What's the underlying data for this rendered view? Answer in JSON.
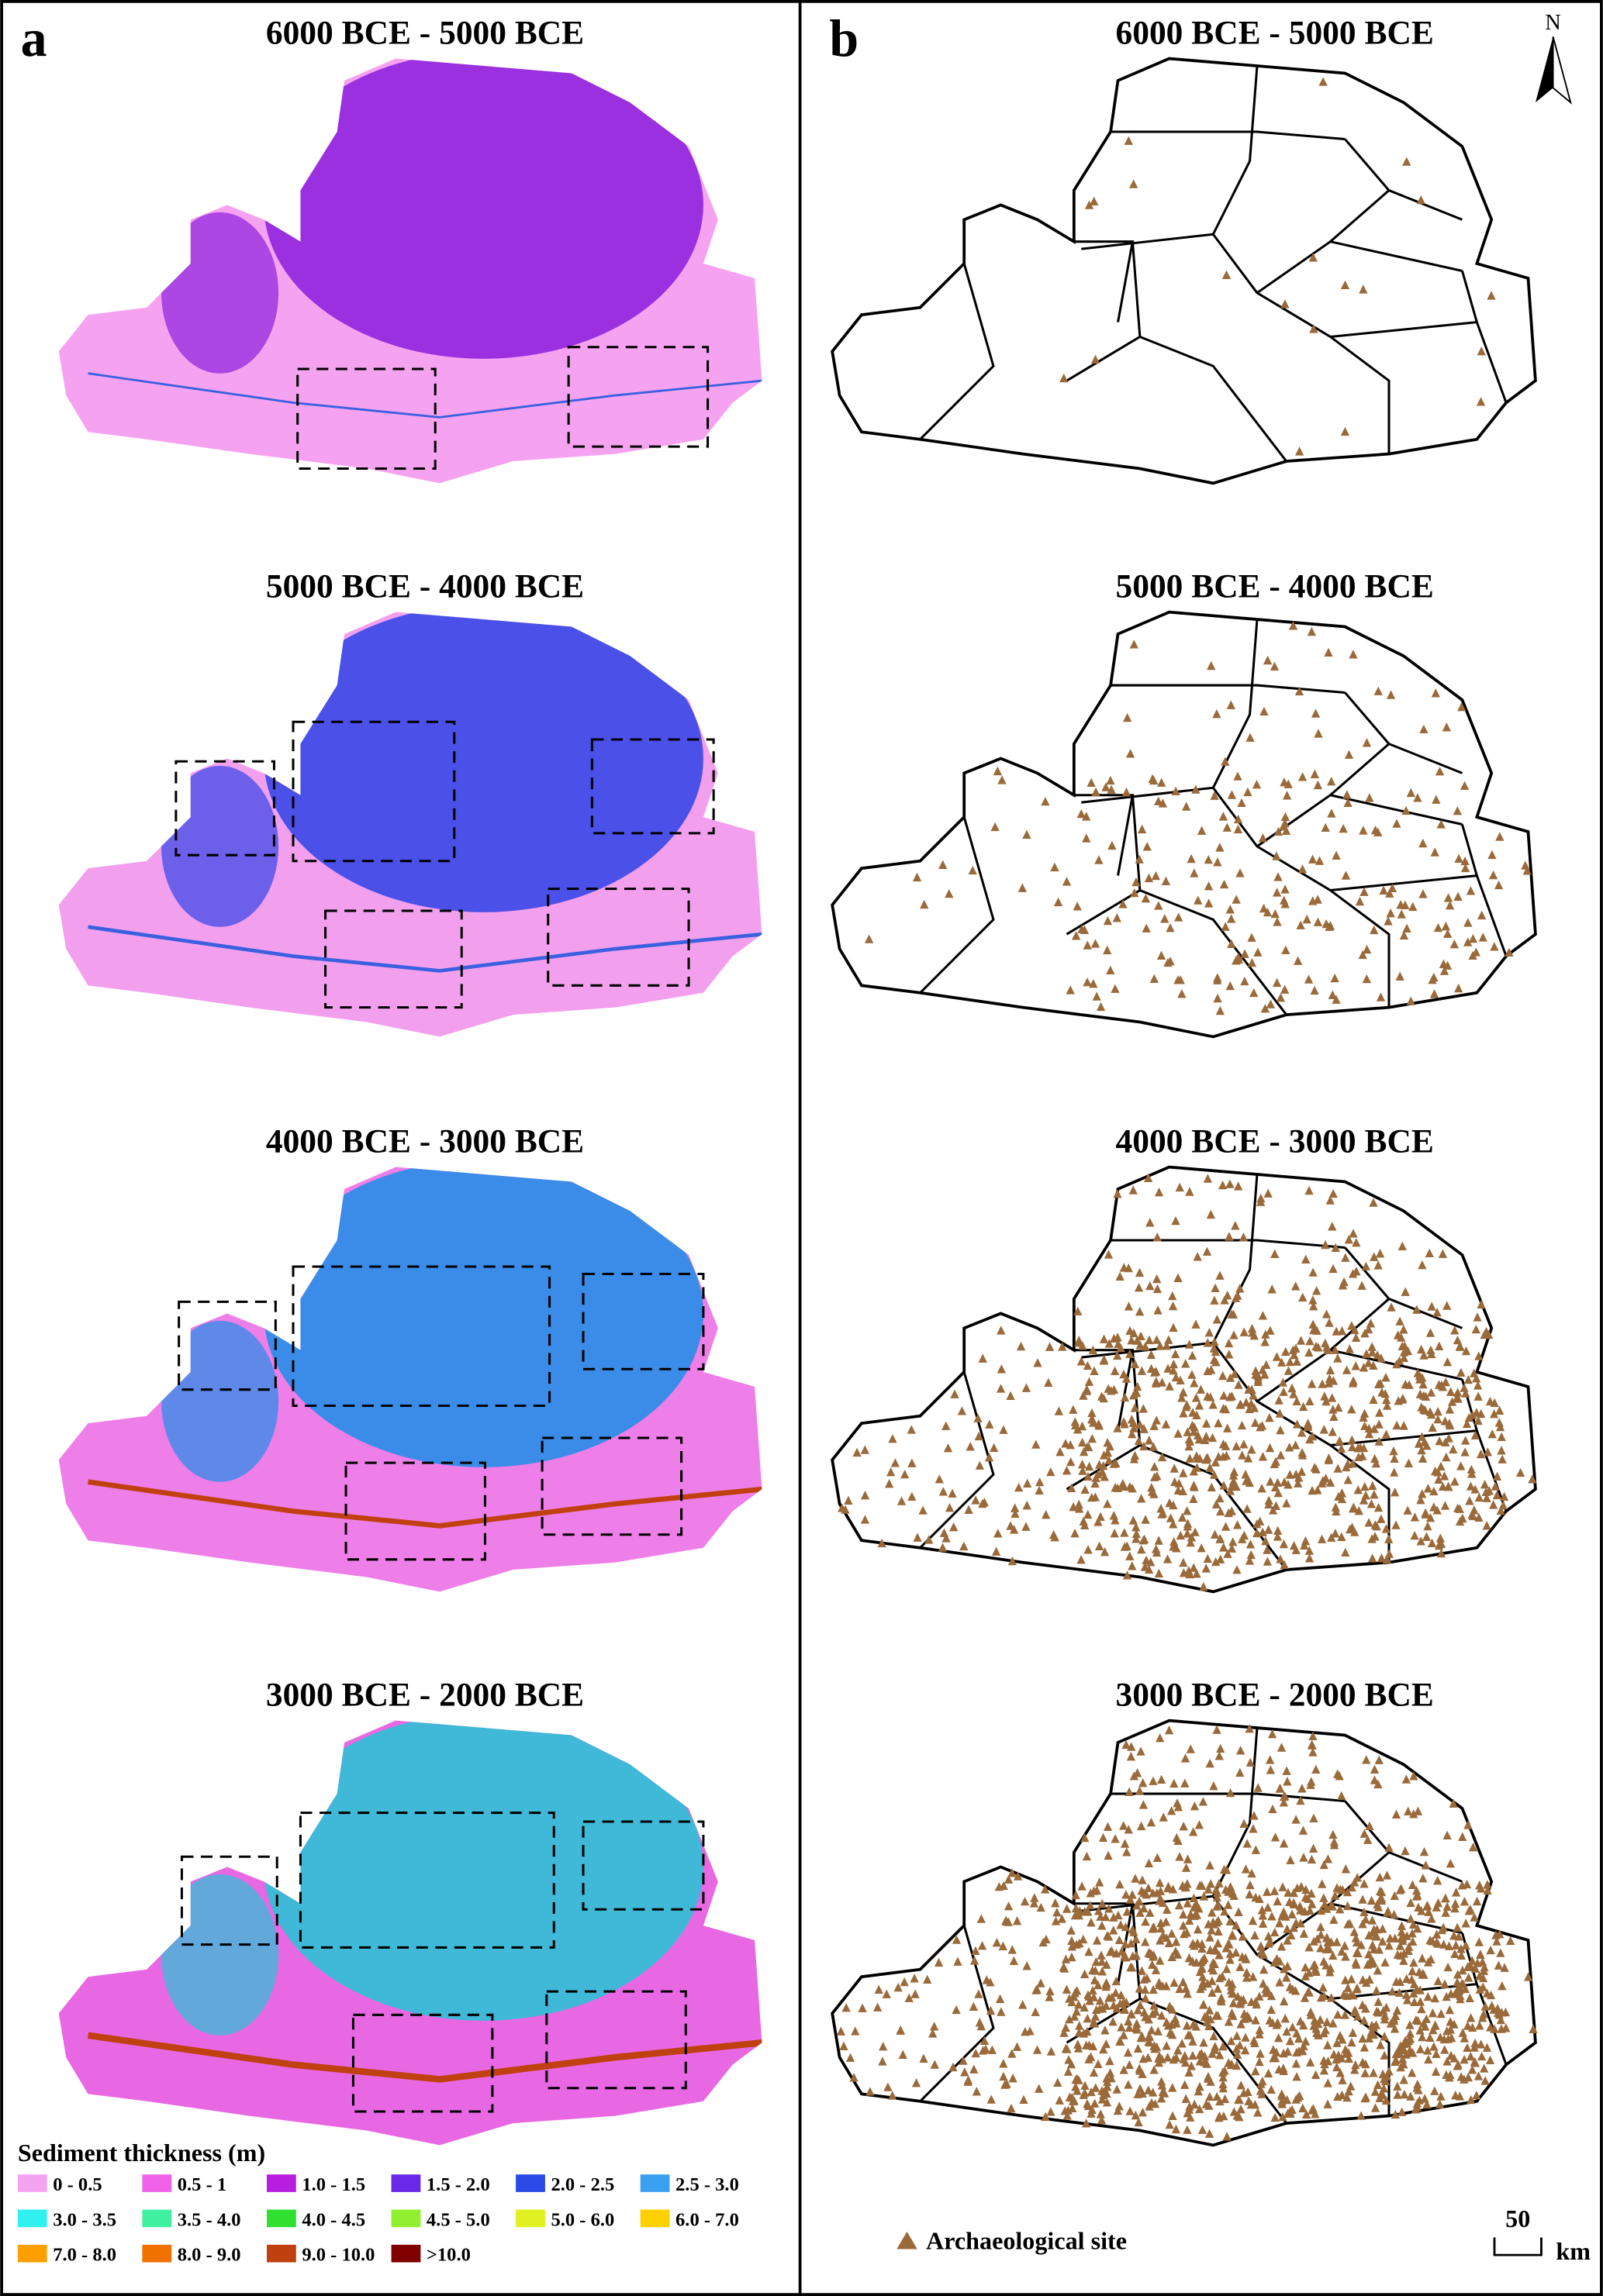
{
  "panel_a": {
    "label": "a",
    "maps": [
      {
        "title": "6000 BCE - 5000 BCE"
      },
      {
        "title": "5000 BCE - 4000 BCE"
      },
      {
        "title": "4000 BCE - 3000 BCE"
      },
      {
        "title": "3000 BCE - 2000 BCE"
      }
    ],
    "legend": {
      "title": "Sediment thickness (m)",
      "items": [
        {
          "label": "0 - 0.5",
          "color": "#f5a3f0"
        },
        {
          "label": "0.5 - 1",
          "color": "#f060e8"
        },
        {
          "label": "1.0 - 1.5",
          "color": "#b81ee0"
        },
        {
          "label": "1.5 - 2.0",
          "color": "#6a28e8"
        },
        {
          "label": "2.0 - 2.5",
          "color": "#2a4ae8"
        },
        {
          "label": "2.5 - 3.0",
          "color": "#3aa0f0"
        },
        {
          "label": "3.0 - 3.5",
          "color": "#30f0f0"
        },
        {
          "label": "3.5 - 4.0",
          "color": "#40f0a0"
        },
        {
          "label": "4.0 - 4.5",
          "color": "#30e030"
        },
        {
          "label": "4.5 - 5.0",
          "color": "#90f030"
        },
        {
          "label": "5.0 - 6.0",
          "color": "#e0f020"
        },
        {
          "label": "6.0 - 7.0",
          "color": "#ffd000"
        },
        {
          "label": "7.0 - 8.0",
          "color": "#ffa000"
        },
        {
          "label": "8.0 - 9.0",
          "color": "#f07000"
        },
        {
          "label": "9.0 - 10.0",
          "color": "#c04010"
        },
        {
          "label": ">10.0",
          "color": "#800000"
        }
      ]
    }
  },
  "panel_b": {
    "label": "b",
    "maps": [
      {
        "title": "6000 BCE - 5000 BCE"
      },
      {
        "title": "5000 BCE - 4000 BCE"
      },
      {
        "title": "4000 BCE - 3000 BCE"
      },
      {
        "title": "3000 BCE - 2000 BCE"
      }
    ],
    "legend_label": "Archaeological site",
    "scale_bar": {
      "value": 50,
      "unit": "km"
    },
    "north": "N"
  }
}
